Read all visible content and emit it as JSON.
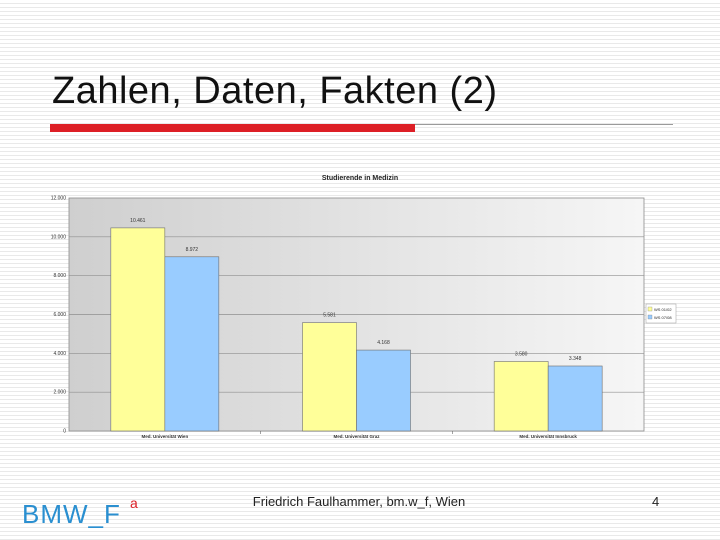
{
  "slide": {
    "title": "Zahlen, Daten, Fakten (2)",
    "page_number": "4",
    "footer": "Friedrich Faulhammer, bm.w_f, Wien",
    "logo_text": "BMW_F",
    "logo_superscript": "a",
    "accent_color": "#dd1f26",
    "rule_color": "#9a9a9a"
  },
  "chart_data": {
    "type": "bar",
    "title": "Studierende in Medizin",
    "categories": [
      "Med. Universität Wien",
      "Med. Universität Graz",
      "Med. Universität Innsbruck"
    ],
    "series": [
      {
        "name": "WS 01/02",
        "values": [
          10461,
          5581,
          3580
        ],
        "color": "#ffff99"
      },
      {
        "name": "WS 07/08",
        "values": [
          8972,
          4168,
          3348
        ],
        "color": "#99ccff"
      }
    ],
    "value_labels": [
      [
        "10.461",
        "5.581",
        "3.580"
      ],
      [
        "8.972",
        "4.168",
        "3.348"
      ]
    ],
    "ylim": [
      0,
      12000
    ],
    "yticks": [
      0,
      2000,
      4000,
      6000,
      8000,
      10000,
      12000
    ],
    "ytick_labels": [
      "0",
      "2.000",
      "4.000",
      "6.000",
      "8.000",
      "10.000",
      "12.000"
    ],
    "grid": true,
    "legend": "right"
  }
}
